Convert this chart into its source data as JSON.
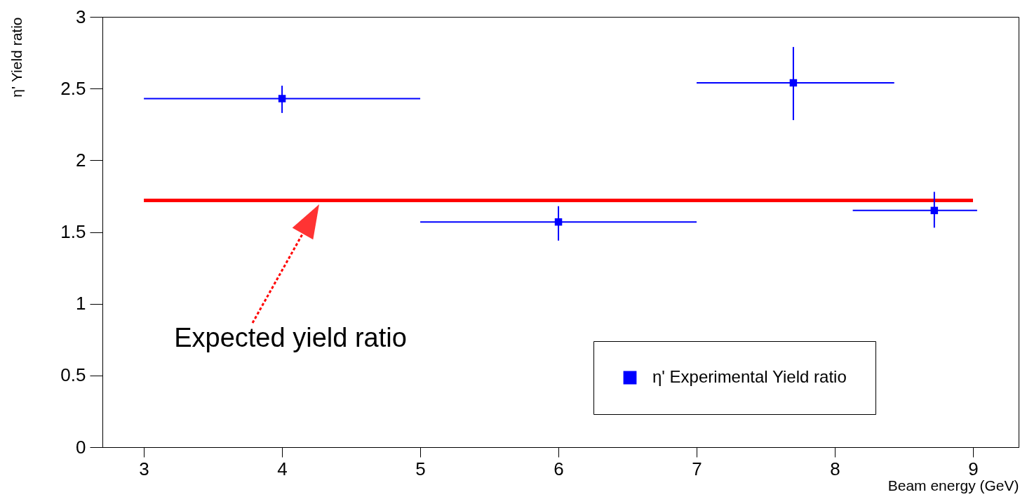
{
  "chart_data": {
    "type": "scatter",
    "xlabel": "Beam energy (GeV)",
    "ylabel": "η' Yield ratio",
    "xlim": [
      2.7,
      9.33
    ],
    "ylim": [
      0,
      3
    ],
    "xticks": [
      3,
      4,
      5,
      6,
      7,
      8,
      9
    ],
    "yticks": [
      0,
      0.5,
      1,
      1.5,
      2,
      2.5,
      3
    ],
    "grid": false,
    "legend": "bottom right",
    "annotations": [
      "Expected yield ratio"
    ],
    "series": [
      {
        "type": "line",
        "color": "#ff0000",
        "x": [
          3,
          9
        ],
        "values": [
          1.72,
          1.72
        ]
      },
      {
        "type": "scatter",
        "name": "η' Experimental Yield ratio",
        "color": "#0000ff",
        "marker": "square",
        "x": [
          4,
          6,
          7.7,
          8.72
        ],
        "values": [
          2.43,
          1.57,
          2.54,
          1.65
        ],
        "errors": [
          [
            2.33,
            2.52
          ],
          [
            1.44,
            1.68
          ],
          [
            2.28,
            2.79
          ],
          [
            1.53,
            1.78
          ]
        ],
        "xerrors": [
          [
            3,
            5
          ],
          [
            5,
            7
          ],
          [
            7,
            8.43
          ],
          [
            8.13,
            9.03
          ]
        ]
      }
    ]
  }
}
